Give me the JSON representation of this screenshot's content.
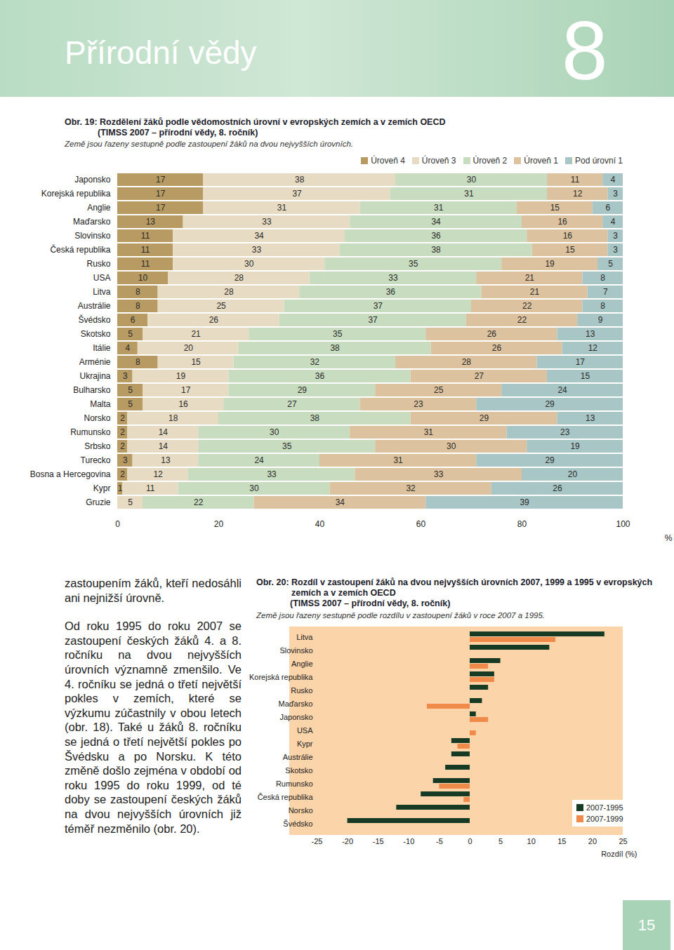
{
  "header": {
    "title": "Přírodní vědy",
    "chapter": "8"
  },
  "chart_data": [
    {
      "type": "bar",
      "title": "Obr. 19: Rozdělení žáků podle vědomostních úrovní v evropských zemích a v zemích OECD",
      "subtitle": "(TIMSS 2007 – přírodní vědy, 8. ročník)",
      "annotations": [
        "Země jsou řazeny sestupně podle zastoupení žáků na dvou nejvyšších úrovních."
      ],
      "orientation": "horizontal",
      "stacked": true,
      "data_labels": true,
      "legend": "top-right",
      "grid": false,
      "categories": [
        "Japonsko",
        "Korejská republika",
        "Anglie",
        "Maďarsko",
        "Slovinsko",
        "Česká republika",
        "Rusko",
        "USA",
        "Litva",
        "Austrálie",
        "Švédsko",
        "Skotsko",
        "Itálie",
        "Arménie",
        "Ukrajina",
        "Bulharsko",
        "Malta",
        "Norsko",
        "Rumunsko",
        "Srbsko",
        "Turecko",
        "Bosna a Hercegovina",
        "Kypr",
        "Gruzie"
      ],
      "series": [
        {
          "name": "Úroveň 4",
          "color": "#b89b62",
          "values": [
            17,
            17,
            17,
            13,
            11,
            11,
            11,
            10,
            8,
            8,
            6,
            5,
            4,
            8,
            3,
            5,
            5,
            2,
            2,
            2,
            3,
            2,
            1,
            0
          ]
        },
        {
          "name": "Úroveň 3",
          "color": "#e7dcc3",
          "values": [
            38,
            37,
            31,
            33,
            34,
            33,
            30,
            28,
            28,
            25,
            26,
            21,
            20,
            15,
            19,
            17,
            16,
            18,
            14,
            14,
            13,
            12,
            11,
            5
          ]
        },
        {
          "name": "Úroveň 2",
          "color": "#c8dcc0",
          "values": [
            30,
            31,
            31,
            34,
            36,
            38,
            35,
            33,
            36,
            37,
            37,
            35,
            38,
            32,
            36,
            29,
            27,
            38,
            30,
            35,
            24,
            33,
            30,
            22
          ]
        },
        {
          "name": "Úroveň 1",
          "color": "#dcc29e",
          "values": [
            11,
            12,
            15,
            16,
            16,
            15,
            19,
            21,
            21,
            22,
            22,
            26,
            26,
            28,
            27,
            25,
            23,
            29,
            31,
            30,
            31,
            33,
            32,
            34
          ]
        },
        {
          "name": "Pod úrovní 1",
          "color": "#a9c6c6",
          "values": [
            4,
            3,
            6,
            4,
            3,
            3,
            5,
            8,
            7,
            8,
            9,
            13,
            12,
            17,
            15,
            24,
            29,
            13,
            23,
            19,
            29,
            20,
            26,
            39
          ]
        }
      ],
      "xlim": [
        0,
        100
      ],
      "xticks": [
        0,
        20,
        40,
        60,
        80,
        100
      ],
      "xlabel": "%"
    },
    {
      "type": "bar",
      "title": "Obr. 20: Rozdíl v zastoupení žáků na dvou nejvyšších úrovních 2007, 1999 a 1995 v evropských zemích a v zemích OECD",
      "subtitle": "(TIMSS 2007 – přírodní vědy, 8. ročník)",
      "annotations": [
        "Země jsou řazeny sestupně podle rozdílu v zastoupení žáků v roce 2007 a 1995."
      ],
      "orientation": "horizontal",
      "legend": "bottom-right",
      "grid": false,
      "categories": [
        "Litva",
        "Slovinsko",
        "Anglie",
        "Korejská republika",
        "Rusko",
        "Maďarsko",
        "Japonsko",
        "USA",
        "Kypr",
        "Austrálie",
        "Skotsko",
        "Rumunsko",
        "Česká republika",
        "Norsko",
        "Švédsko"
      ],
      "series": [
        {
          "name": "2007-1995",
          "color": "#173a24",
          "values": [
            22,
            13,
            5,
            4,
            3,
            2,
            1,
            0,
            -3,
            -3,
            -4,
            -6,
            -8,
            -12,
            -20
          ]
        },
        {
          "name": "2007-1999",
          "color": "#f08a4a",
          "values": [
            14,
            null,
            3,
            4,
            null,
            -7,
            3,
            1,
            -2,
            null,
            null,
            -5,
            -1,
            null,
            null
          ]
        }
      ],
      "xlim": [
        -25,
        25
      ],
      "xticks": [
        -25,
        -20,
        -15,
        -10,
        -5,
        0,
        5,
        10,
        15,
        20,
        25
      ],
      "xlabel": "Rozdíl (%)"
    }
  ],
  "body_text": [
    "zastoupením žáků, kteří nedosáhli ani nejnižší úrovně.",
    "Od roku 1995 do roku 2007 se zastoupení českých žáků 4. a 8. ročníku na dvou nejvyšších úrovních významně zmenšilo. Ve 4. ročníku se jedná o třetí největší pokles v zemích, které se výzkumu zúčastnily v obou letech (obr. 18). Také u žáků 8. ročníku se jedná o třetí největší pokles po Švédsku a po Norsku. K této změně došlo zejména v období od roku 1995 do roku 1999, od té doby se zastoupení českých žáků na dvou nejvyšších úrovních již téměř nezměnilo (obr. 20)."
  ],
  "page_number": "15"
}
